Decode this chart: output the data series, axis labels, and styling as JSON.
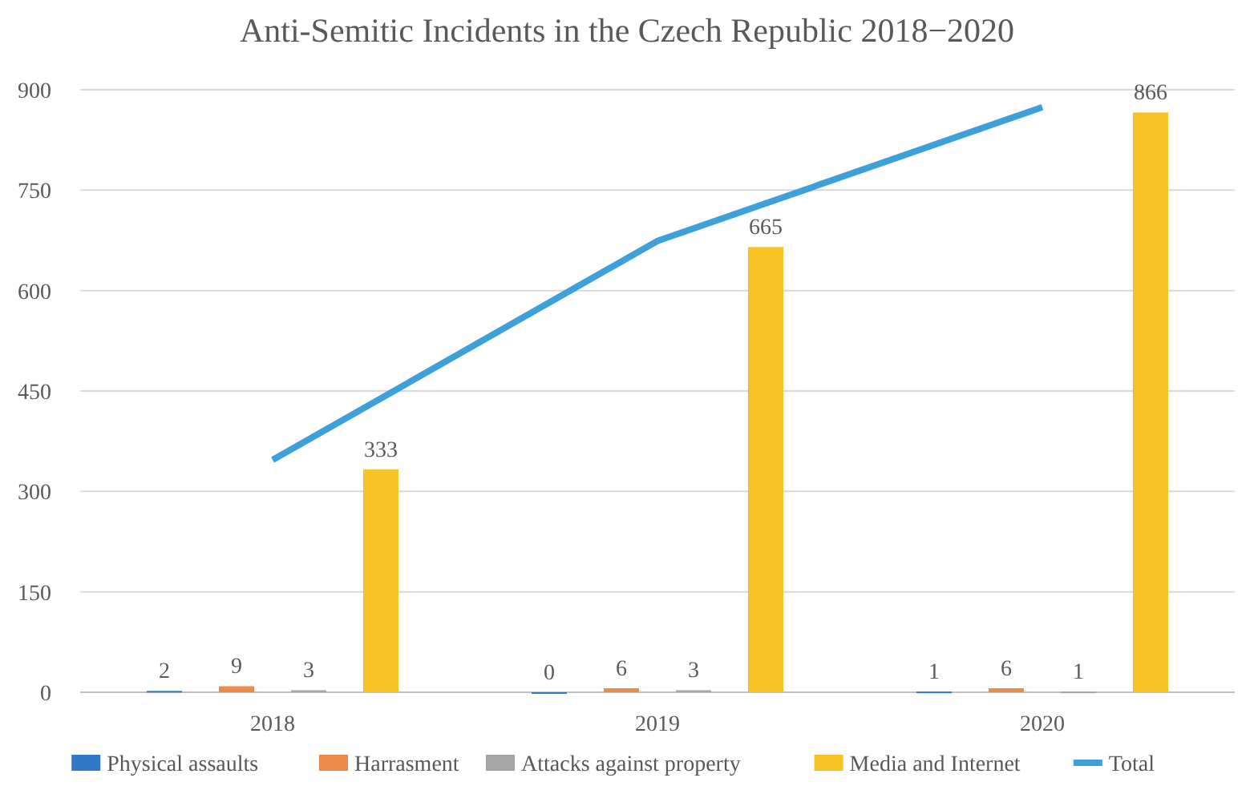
{
  "chart_data": {
    "type": "bar",
    "title": "Anti-Semitic Incidents in the Czech Republic 2018−2020",
    "categories": [
      "2018",
      "2019",
      "2020"
    ],
    "series": [
      {
        "name": "Physical assaults",
        "color": "#2e78c6",
        "values": [
          2,
          0,
          1
        ],
        "value_labels": [
          "2",
          "0",
          "1"
        ]
      },
      {
        "name": "Harrasment",
        "color": "#ec8a4c",
        "values": [
          9,
          6,
          6
        ],
        "value_labels": [
          "9",
          "6",
          "6"
        ]
      },
      {
        "name": "Attacks against property",
        "color": "#a6a6a6",
        "values": [
          3,
          3,
          1
        ],
        "value_labels": [
          "3",
          "3",
          "1"
        ]
      },
      {
        "name": "Media and Internet",
        "color": "#f7c223",
        "values": [
          333,
          665,
          866
        ],
        "value_labels": [
          "333",
          "665",
          "866"
        ]
      },
      {
        "name": "Total",
        "type": "line",
        "color": "#3ea0da",
        "values": [
          347,
          674,
          874
        ]
      }
    ],
    "ylim": [
      0,
      900
    ],
    "yticks": [
      0,
      150,
      300,
      450,
      600,
      750,
      900
    ],
    "grid": "y",
    "legend": "bottom",
    "marker": "none",
    "line_style": "solid"
  }
}
